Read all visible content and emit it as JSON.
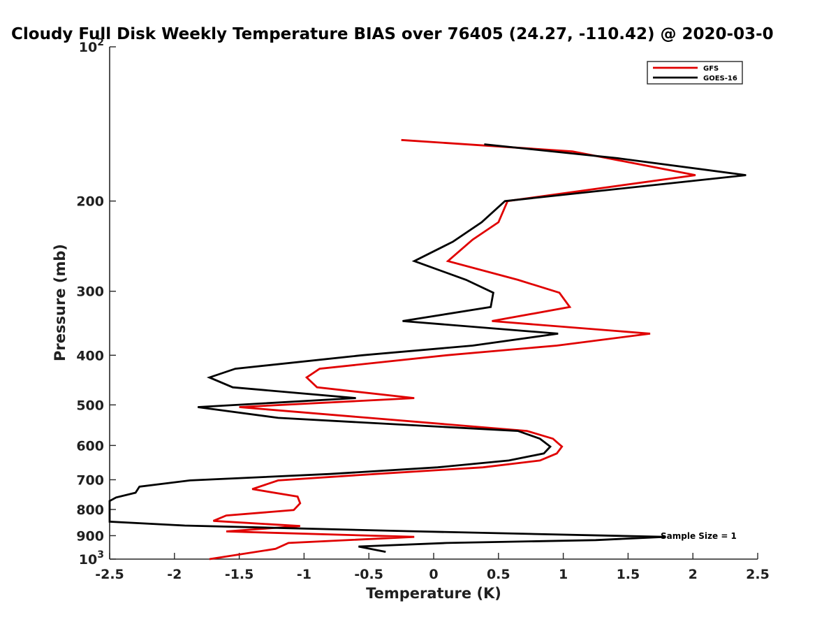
{
  "chart_data": {
    "type": "line",
    "title": "Cloudy Full Disk Weekly Temperature BIAS over 76405 (24.27, -110.42) @ 2020-03-0",
    "xlabel": "Temperature (K)",
    "ylabel": "Pressure (mb)",
    "xlim": [
      -2.5,
      2.5
    ],
    "ylim": [
      1000,
      100
    ],
    "yscale": "log",
    "y_reversed": true,
    "grid": false,
    "legend_position": "top-right",
    "x_ticks": [
      "-2.5",
      "-2",
      "-1.5",
      "-1",
      "-0.5",
      "0",
      "0.5",
      "1",
      "1.5",
      "2",
      "2.5"
    ],
    "y_ticks": [
      {
        "value": 100,
        "label": "10",
        "sup": "2"
      },
      {
        "value": 200,
        "label": "200"
      },
      {
        "value": 300,
        "label": "300"
      },
      {
        "value": 400,
        "label": "400"
      },
      {
        "value": 500,
        "label": "500"
      },
      {
        "value": 600,
        "label": "600"
      },
      {
        "value": 700,
        "label": "700"
      },
      {
        "value": 800,
        "label": "800"
      },
      {
        "value": 900,
        "label": "900"
      },
      {
        "value": 1000,
        "label": "10",
        "sup": "3"
      }
    ],
    "annotation": "Sample Size = 1",
    "series": [
      {
        "name": "GFS",
        "color": "#e00000",
        "points": [
          [
            -0.25,
            152
          ],
          [
            1.07,
            160
          ],
          [
            2.02,
            178
          ],
          [
            0.57,
            200
          ],
          [
            0.5,
            220
          ],
          [
            0.3,
            238
          ],
          [
            0.11,
            262
          ],
          [
            0.65,
            285
          ],
          [
            0.97,
            302
          ],
          [
            1.05,
            322
          ],
          [
            0.45,
            343
          ],
          [
            1.67,
            363
          ],
          [
            0.95,
            383
          ],
          [
            0.1,
            400
          ],
          [
            -0.88,
            425
          ],
          [
            -0.98,
            442
          ],
          [
            -0.9,
            462
          ],
          [
            -0.15,
            485
          ],
          [
            -1.5,
            505
          ],
          [
            -0.5,
            530
          ],
          [
            0.72,
            562
          ],
          [
            0.92,
            582
          ],
          [
            0.99,
            603
          ],
          [
            0.95,
            622
          ],
          [
            0.82,
            642
          ],
          [
            0.38,
            662
          ],
          [
            -0.45,
            682
          ],
          [
            -1.2,
            702
          ],
          [
            -1.4,
            730
          ],
          [
            -1.05,
            755
          ],
          [
            -1.03,
            778
          ],
          [
            -1.08,
            802
          ],
          [
            -1.6,
            822
          ],
          [
            -1.7,
            842
          ],
          [
            -1.03,
            862
          ],
          [
            -1.6,
            883
          ],
          [
            -0.15,
            905
          ],
          [
            -1.12,
            930
          ],
          [
            -1.22,
            955
          ],
          [
            -1.73,
            1000
          ]
        ]
      },
      {
        "name": "GOES-16",
        "color": "#000000",
        "points": [
          [
            0.39,
            155
          ],
          [
            1.42,
            165
          ],
          [
            2.41,
            178
          ],
          [
            0.55,
            200
          ],
          [
            0.37,
            220
          ],
          [
            0.15,
            240
          ],
          [
            -0.15,
            262
          ],
          [
            0.25,
            285
          ],
          [
            0.46,
            302
          ],
          [
            0.44,
            322
          ],
          [
            -0.24,
            343
          ],
          [
            0.96,
            363
          ],
          [
            0.3,
            383
          ],
          [
            -0.55,
            400
          ],
          [
            -1.53,
            425
          ],
          [
            -1.73,
            442
          ],
          [
            -1.55,
            462
          ],
          [
            -0.6,
            485
          ],
          [
            -1.82,
            505
          ],
          [
            -1.2,
            530
          ],
          [
            0.65,
            562
          ],
          [
            0.82,
            582
          ],
          [
            0.9,
            603
          ],
          [
            0.85,
            622
          ],
          [
            0.58,
            642
          ],
          [
            0.03,
            662
          ],
          [
            -0.8,
            682
          ],
          [
            -1.88,
            702
          ],
          [
            -2.27,
            722
          ],
          [
            -2.3,
            742
          ],
          [
            -2.45,
            758
          ],
          [
            -2.5,
            770
          ],
          [
            -2.5,
            845
          ],
          [
            -1.92,
            860
          ],
          [
            -0.2,
            882
          ],
          [
            1.78,
            905
          ],
          [
            1.25,
            918
          ],
          [
            0.1,
            930
          ],
          [
            -0.58,
            945
          ],
          [
            -0.37,
            968
          ]
        ]
      }
    ]
  }
}
